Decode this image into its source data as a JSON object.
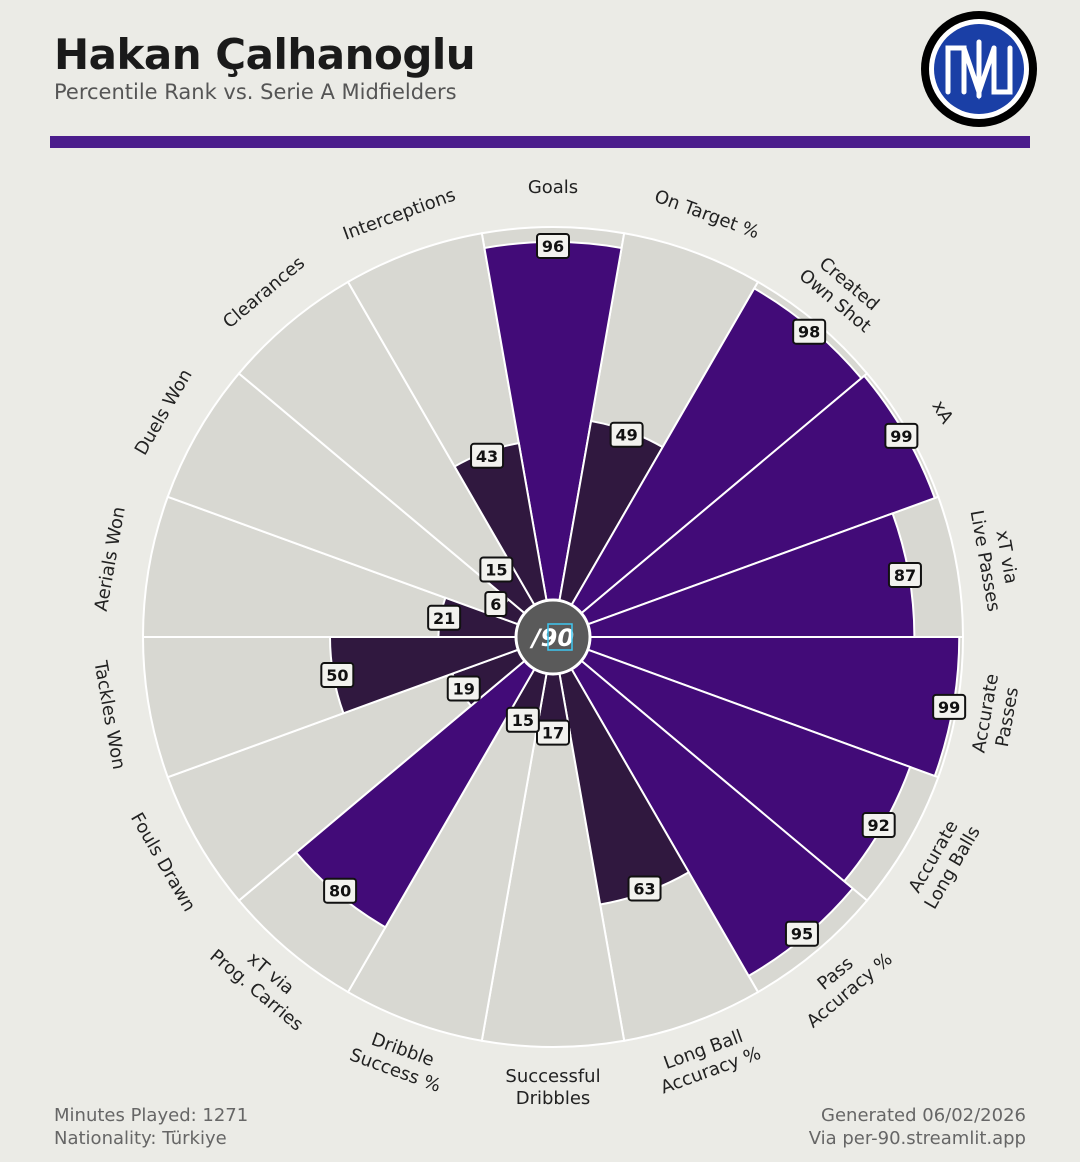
{
  "header": {
    "title": "Hakan Çalhanoglu",
    "subtitle": "Percentile Rank vs. Serie A Midfielders"
  },
  "footer": {
    "minutes": "Minutes Played: 1271",
    "nationality": "Nationality: Türkiye",
    "generated": "Generated 06/02/2026",
    "via": "Via per-90.streamlit.app"
  },
  "center_logo_text": "/90",
  "colors": {
    "accent": "#4b1d8c",
    "high": "#420b78",
    "low": "#30183f",
    "background_wedge": "#d8d8d2",
    "page": "#ebebe6"
  },
  "chart_data": {
    "type": "polar-bar",
    "range": [
      0,
      100
    ],
    "categories": [
      "Goals",
      "On Target %",
      "Created\nOwn Shot",
      "xA",
      "xT via\nLive Passes",
      "Accurate\nPasses",
      "Accurate\nLong Balls",
      "Pass\nAccuracy %",
      "Long Ball\nAccuracy %",
      "Successful\nDribbles",
      "Dribble\nSuccess %",
      "xT via\nProg. Carries",
      "Fouls Drawn",
      "Tackles Won",
      "Aerials Won",
      "Duels Won",
      "Clearances",
      "Interceptions"
    ],
    "values": [
      96,
      49,
      98,
      99,
      87,
      99,
      92,
      95,
      63,
      17,
      15,
      80,
      19,
      50,
      21,
      6,
      15,
      43
    ]
  }
}
